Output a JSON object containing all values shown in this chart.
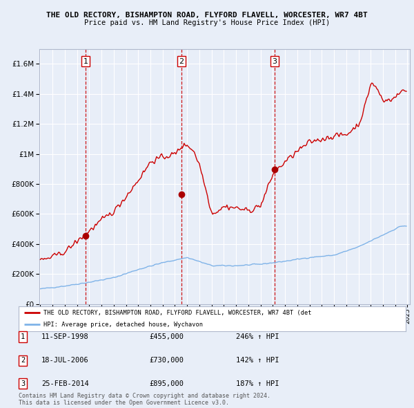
{
  "title1": "THE OLD RECTORY, BISHAMPTON ROAD, FLYFORD FLAVELL, WORCESTER, WR7 4BT",
  "title2": "Price paid vs. HM Land Registry's House Price Index (HPI)",
  "background_color": "#e8eef8",
  "plot_bg": "#e8eef8",
  "ylim": [
    0,
    1700000
  ],
  "yticks": [
    0,
    200000,
    400000,
    600000,
    800000,
    1000000,
    1200000,
    1400000,
    1600000
  ],
  "sale_prices": [
    455000,
    730000,
    895000
  ],
  "sale_labels": [
    "1",
    "2",
    "3"
  ],
  "sale_year_floats": [
    1998.708,
    2006.542,
    2014.146
  ],
  "vline_color": "#cc0000",
  "sale_dot_color": "#aa0000",
  "hpi_line_color": "#7fb3e8",
  "price_line_color": "#cc0000",
  "legend_label_price": "THE OLD RECTORY, BISHAMPTON ROAD, FLYFORD FLAVELL, WORCESTER, WR7 4BT (det",
  "legend_label_hpi": "HPI: Average price, detached house, Wychavon",
  "table_rows": [
    [
      "1",
      "11-SEP-1998",
      "£455,000",
      "246% ↑ HPI"
    ],
    [
      "2",
      "18-JUL-2006",
      "£730,000",
      "142% ↑ HPI"
    ],
    [
      "3",
      "25-FEB-2014",
      "£895,000",
      "187% ↑ HPI"
    ]
  ],
  "footnote1": "Contains HM Land Registry data © Crown copyright and database right 2024.",
  "footnote2": "This data is licensed under the Open Government Licence v3.0."
}
